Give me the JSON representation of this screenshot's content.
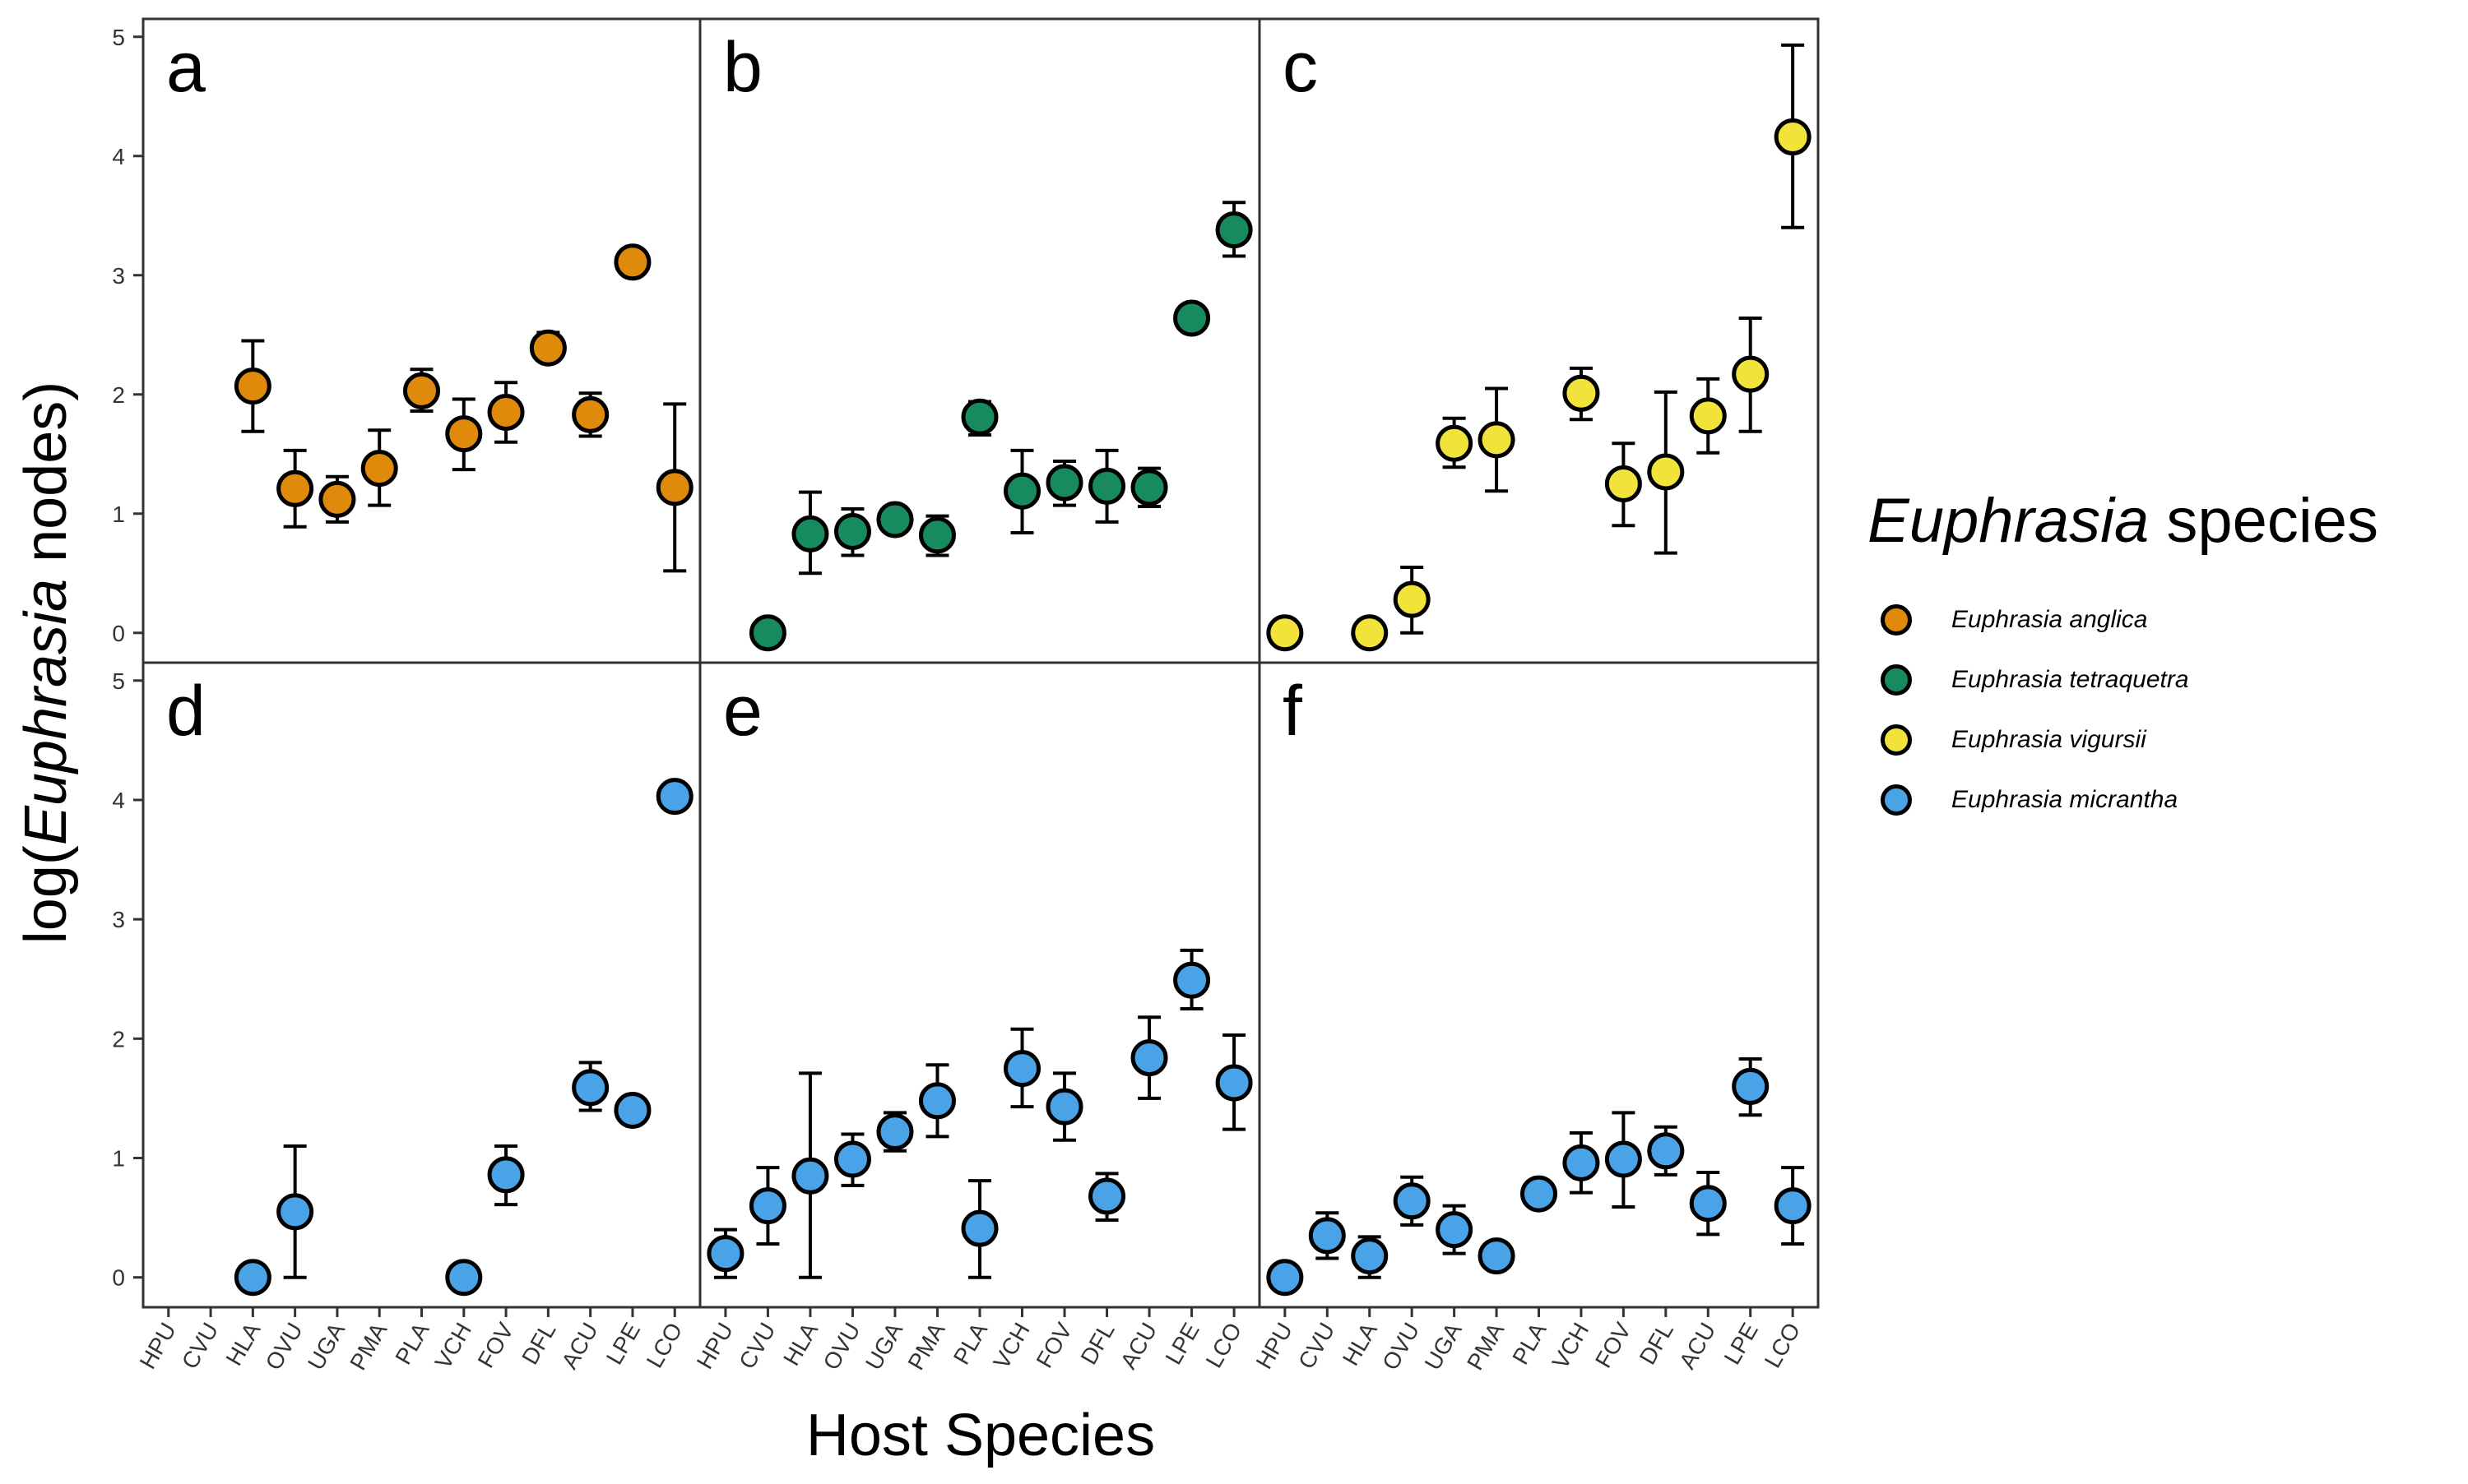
{
  "chart_data": {
    "type": "scatter",
    "xlabel": "Host Species",
    "ylabel_prefix": "log(",
    "ylabel_italic": "Euphrasia",
    "ylabel_suffix": " nodes)",
    "categories": [
      "HPU",
      "CVU",
      "HLA",
      "OVU",
      "UGA",
      "PMA",
      "PLA",
      "VCH",
      "FOV",
      "DFL",
      "ACU",
      "LPE",
      "LCO"
    ],
    "ylim": [
      -0.25,
      5.15
    ],
    "yticks": [
      "0",
      "1",
      "2",
      "3",
      "4",
      "5"
    ],
    "grid": false,
    "legend_position": "right",
    "legend": {
      "title_italic": "Euphrasia",
      "title_suffix": " species",
      "items": [
        {
          "label": "Euphrasia anglica",
          "color": "#E08A0B"
        },
        {
          "label": "Euphrasia tetraquetra",
          "color": "#178A5E"
        },
        {
          "label": "Euphrasia vigursii",
          "color": "#F2E33A"
        },
        {
          "label": "Euphrasia micrantha",
          "color": "#4AA3E6"
        }
      ]
    },
    "panels": [
      {
        "label": "a",
        "color": "#E08A0B",
        "points": [
          {
            "x": "HLA",
            "y": 2.07,
            "lo": 1.69,
            "hi": 2.45
          },
          {
            "x": "OVU",
            "y": 1.21,
            "lo": 0.89,
            "hi": 1.53
          },
          {
            "x": "UGA",
            "y": 1.12,
            "lo": 0.93,
            "hi": 1.31
          },
          {
            "x": "PMA",
            "y": 1.38,
            "lo": 1.07,
            "hi": 1.7
          },
          {
            "x": "PLA",
            "y": 2.03,
            "lo": 1.86,
            "hi": 2.21
          },
          {
            "x": "VCH",
            "y": 1.67,
            "lo": 1.37,
            "hi": 1.96
          },
          {
            "x": "FOV",
            "y": 1.85,
            "lo": 1.6,
            "hi": 2.1
          },
          {
            "x": "DFL",
            "y": 2.39,
            "lo": 2.28,
            "hi": 2.52
          },
          {
            "x": "ACU",
            "y": 1.83,
            "lo": 1.65,
            "hi": 2.01
          },
          {
            "x": "LPE",
            "y": 3.11,
            "lo": 3.01,
            "hi": 3.2
          },
          {
            "x": "LCO",
            "y": 1.22,
            "lo": 0.52,
            "hi": 1.92
          }
        ]
      },
      {
        "label": "b",
        "color": "#178A5E",
        "points": [
          {
            "x": "CVU",
            "y": 0.0,
            "lo": null,
            "hi": null
          },
          {
            "x": "HLA",
            "y": 0.83,
            "lo": 0.5,
            "hi": 1.18
          },
          {
            "x": "OVU",
            "y": 0.85,
            "lo": 0.65,
            "hi": 1.04
          },
          {
            "x": "UGA",
            "y": 0.95,
            "lo": 0.85,
            "hi": 1.06
          },
          {
            "x": "PMA",
            "y": 0.82,
            "lo": 0.65,
            "hi": 0.98
          },
          {
            "x": "PLA",
            "y": 1.81,
            "lo": 1.66,
            "hi": 1.94
          },
          {
            "x": "VCH",
            "y": 1.19,
            "lo": 0.84,
            "hi": 1.53
          },
          {
            "x": "FOV",
            "y": 1.26,
            "lo": 1.07,
            "hi": 1.44
          },
          {
            "x": "DFL",
            "y": 1.23,
            "lo": 0.93,
            "hi": 1.53
          },
          {
            "x": "ACU",
            "y": 1.22,
            "lo": 1.06,
            "hi": 1.38
          },
          {
            "x": "LPE",
            "y": 2.64,
            "lo": null,
            "hi": null
          },
          {
            "x": "LCO",
            "y": 3.38,
            "lo": 3.16,
            "hi": 3.61
          }
        ]
      },
      {
        "label": "c",
        "color": "#F2E33A",
        "points": [
          {
            "x": "HPU",
            "y": 0.0,
            "lo": null,
            "hi": null
          },
          {
            "x": "HLA",
            "y": 0.0,
            "lo": null,
            "hi": null
          },
          {
            "x": "OVU",
            "y": 0.28,
            "lo": 0.0,
            "hi": 0.55
          },
          {
            "x": "UGA",
            "y": 1.59,
            "lo": 1.39,
            "hi": 1.8
          },
          {
            "x": "PMA",
            "y": 1.62,
            "lo": 1.19,
            "hi": 2.05
          },
          {
            "x": "VCH",
            "y": 2.01,
            "lo": 1.79,
            "hi": 2.22
          },
          {
            "x": "FOV",
            "y": 1.25,
            "lo": 0.9,
            "hi": 1.59
          },
          {
            "x": "DFL",
            "y": 1.35,
            "lo": 0.67,
            "hi": 2.02
          },
          {
            "x": "ACU",
            "y": 1.82,
            "lo": 1.51,
            "hi": 2.13
          },
          {
            "x": "LPE",
            "y": 2.17,
            "lo": 1.69,
            "hi": 2.64
          },
          {
            "x": "LCO",
            "y": 4.16,
            "lo": 3.4,
            "hi": 4.93
          }
        ]
      },
      {
        "label": "d",
        "color": "#4AA3E6",
        "points": [
          {
            "x": "HLA",
            "y": 0.0,
            "lo": null,
            "hi": null
          },
          {
            "x": "OVU",
            "y": 0.55,
            "lo": 0.0,
            "hi": 1.1
          },
          {
            "x": "VCH",
            "y": 0.0,
            "lo": null,
            "hi": null
          },
          {
            "x": "FOV",
            "y": 0.86,
            "lo": 0.61,
            "hi": 1.1
          },
          {
            "x": "ACU",
            "y": 1.59,
            "lo": 1.4,
            "hi": 1.8
          },
          {
            "x": "LPE",
            "y": 1.4,
            "lo": null,
            "hi": null
          },
          {
            "x": "LCO",
            "y": 4.03,
            "lo": null,
            "hi": null
          }
        ]
      },
      {
        "label": "e",
        "color": "#4AA3E6",
        "points": [
          {
            "x": "HPU",
            "y": 0.2,
            "lo": 0.0,
            "hi": 0.4
          },
          {
            "x": "CVU",
            "y": 0.6,
            "lo": 0.28,
            "hi": 0.92
          },
          {
            "x": "HLA",
            "y": 0.85,
            "lo": 0.0,
            "hi": 1.71
          },
          {
            "x": "OVU",
            "y": 0.99,
            "lo": 0.77,
            "hi": 1.2
          },
          {
            "x": "UGA",
            "y": 1.22,
            "lo": 1.06,
            "hi": 1.38
          },
          {
            "x": "PMA",
            "y": 1.48,
            "lo": 1.18,
            "hi": 1.78
          },
          {
            "x": "PLA",
            "y": 0.41,
            "lo": 0.0,
            "hi": 0.81
          },
          {
            "x": "VCH",
            "y": 1.75,
            "lo": 1.43,
            "hi": 2.08
          },
          {
            "x": "FOV",
            "y": 1.43,
            "lo": 1.15,
            "hi": 1.71
          },
          {
            "x": "DFL",
            "y": 0.68,
            "lo": 0.48,
            "hi": 0.87
          },
          {
            "x": "ACU",
            "y": 1.84,
            "lo": 1.5,
            "hi": 2.18
          },
          {
            "x": "LPE",
            "y": 2.49,
            "lo": 2.25,
            "hi": 2.74
          },
          {
            "x": "LCO",
            "y": 1.63,
            "lo": 1.24,
            "hi": 2.03
          }
        ]
      },
      {
        "label": "f",
        "color": "#4AA3E6",
        "points": [
          {
            "x": "HPU",
            "y": 0.0,
            "lo": null,
            "hi": null
          },
          {
            "x": "CVU",
            "y": 0.35,
            "lo": 0.16,
            "hi": 0.54
          },
          {
            "x": "HLA",
            "y": 0.18,
            "lo": 0.0,
            "hi": 0.34
          },
          {
            "x": "OVU",
            "y": 0.64,
            "lo": 0.44,
            "hi": 0.84
          },
          {
            "x": "UGA",
            "y": 0.4,
            "lo": 0.2,
            "hi": 0.6
          },
          {
            "x": "PMA",
            "y": 0.18,
            "lo": null,
            "hi": null
          },
          {
            "x": "PLA",
            "y": 0.7,
            "lo": null,
            "hi": null
          },
          {
            "x": "VCH",
            "y": 0.96,
            "lo": 0.71,
            "hi": 1.21
          },
          {
            "x": "FOV",
            "y": 0.99,
            "lo": 0.59,
            "hi": 1.38
          },
          {
            "x": "DFL",
            "y": 1.06,
            "lo": 0.86,
            "hi": 1.26
          },
          {
            "x": "ACU",
            "y": 0.62,
            "lo": 0.36,
            "hi": 0.88
          },
          {
            "x": "LPE",
            "y": 1.6,
            "lo": 1.36,
            "hi": 1.83
          },
          {
            "x": "LCO",
            "y": 0.6,
            "lo": 0.28,
            "hi": 0.92
          }
        ]
      }
    ]
  }
}
